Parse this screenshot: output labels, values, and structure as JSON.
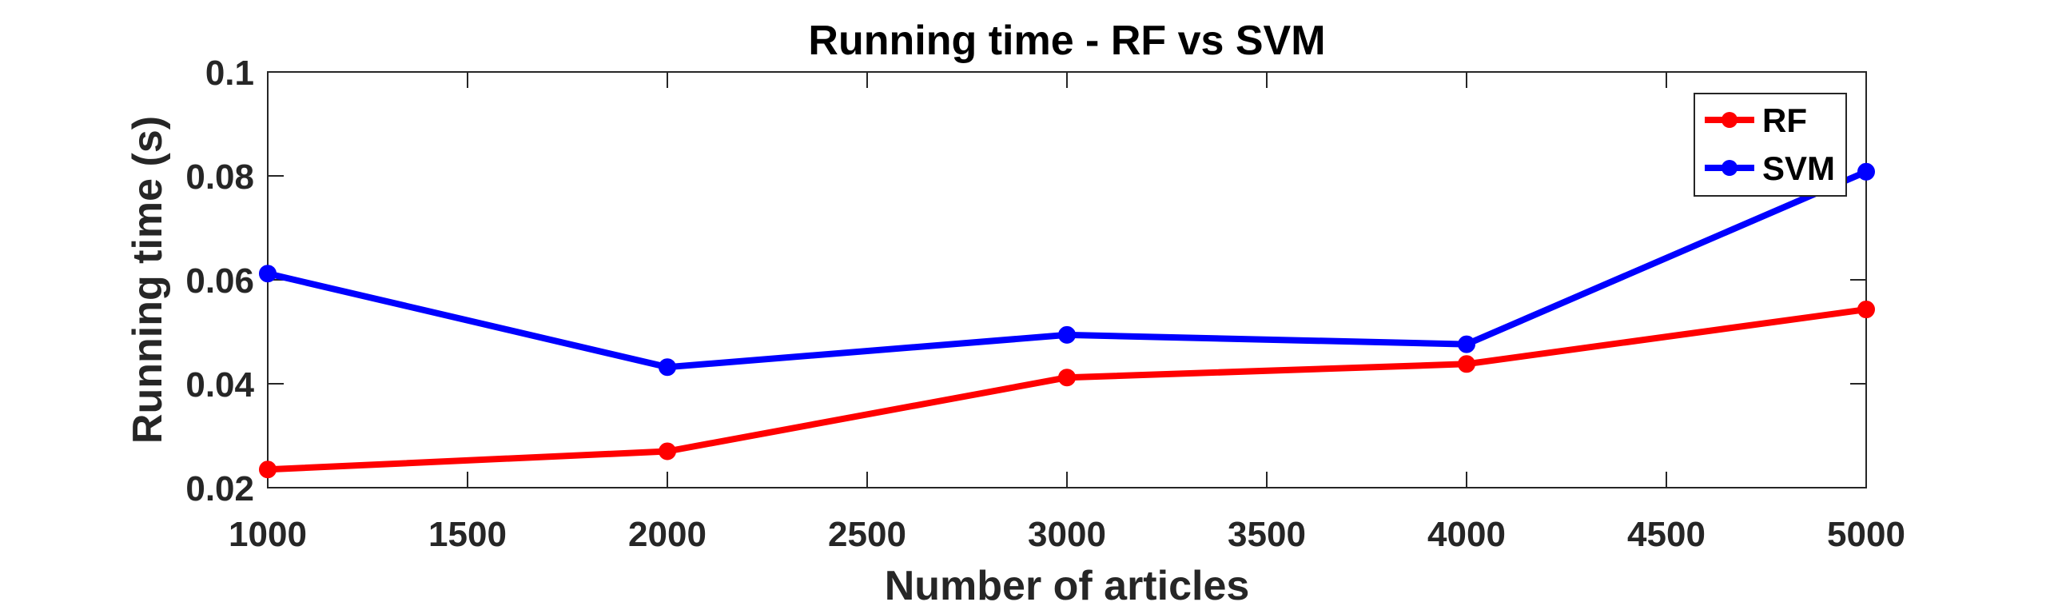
{
  "chart_data": {
    "type": "line",
    "title": "Running time - RF vs SVM",
    "xlabel": "Number of articles",
    "ylabel": "Running time (s)",
    "xlim": [
      1000,
      5000
    ],
    "ylim": [
      0.02,
      0.1
    ],
    "xticks": [
      1000,
      1500,
      2000,
      2500,
      3000,
      3500,
      4000,
      4500,
      5000
    ],
    "xtick_labels": [
      "1000",
      "1500",
      "2000",
      "2500",
      "3000",
      "3500",
      "4000",
      "4500",
      "5000"
    ],
    "yticks": [
      0.02,
      0.04,
      0.06,
      0.08,
      0.1
    ],
    "ytick_labels": [
      "0.02",
      "0.04",
      "0.06",
      "0.08",
      "0.1"
    ],
    "grid": false,
    "legend_position": "top-right",
    "x": [
      1000,
      2000,
      3000,
      4000,
      5000
    ],
    "series": [
      {
        "name": "RF",
        "color": "#ff0000",
        "values": [
          0.0235,
          0.027,
          0.0412,
          0.0438,
          0.0543
        ]
      },
      {
        "name": "SVM",
        "color": "#0000ff",
        "values": [
          0.0612,
          0.0432,
          0.0494,
          0.0476,
          0.0808
        ]
      }
    ]
  }
}
